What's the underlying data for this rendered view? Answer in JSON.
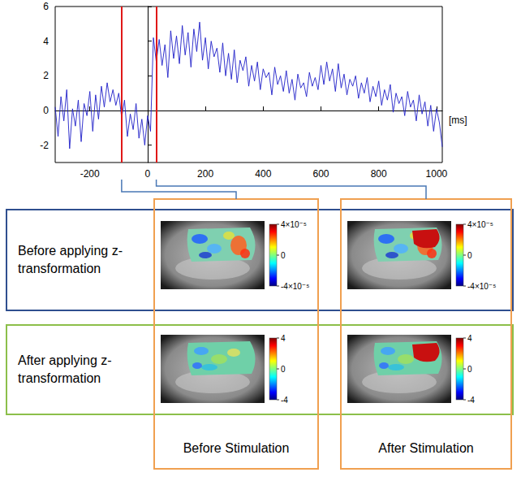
{
  "chart_data": {
    "type": "line",
    "color": "#1f1fc8",
    "x": [
      -320,
      -310,
      -300,
      -290,
      -280,
      -270,
      -260,
      -250,
      -240,
      -230,
      -220,
      -210,
      -200,
      -190,
      -180,
      -170,
      -160,
      -150,
      -140,
      -130,
      -120,
      -110,
      -100,
      -90,
      -80,
      -70,
      -60,
      -50,
      -40,
      -30,
      -20,
      -10,
      0,
      10,
      20,
      30,
      40,
      50,
      60,
      70,
      80,
      90,
      100,
      110,
      120,
      130,
      140,
      150,
      160,
      170,
      180,
      190,
      200,
      210,
      220,
      230,
      240,
      250,
      260,
      270,
      280,
      290,
      300,
      310,
      320,
      330,
      340,
      350,
      360,
      370,
      380,
      390,
      400,
      410,
      420,
      430,
      440,
      450,
      460,
      470,
      480,
      490,
      500,
      510,
      520,
      530,
      540,
      550,
      560,
      570,
      580,
      590,
      600,
      610,
      620,
      630,
      640,
      650,
      660,
      670,
      680,
      690,
      700,
      710,
      720,
      730,
      740,
      750,
      760,
      770,
      780,
      790,
      800,
      810,
      820,
      830,
      840,
      850,
      860,
      870,
      880,
      890,
      900,
      910,
      920,
      930,
      940,
      950,
      960,
      970,
      980,
      990,
      1000,
      1010,
      1020
    ],
    "values": [
      0.2,
      -1.5,
      0.8,
      -0.6,
      1.2,
      -2.2,
      0.1,
      -0.9,
      0.6,
      -1.8,
      0.4,
      -0.3,
      1.1,
      -1.2,
      0.9,
      -0.5,
      1.4,
      0.2,
      1.6,
      0.5,
      1.2,
      0.3,
      1.0,
      -0.4,
      0.6,
      -1.5,
      -0.2,
      -1.1,
      0.4,
      -1.6,
      -0.5,
      -2.0,
      -0.3,
      -1.2,
      4.2,
      2.8,
      4.1,
      2.6,
      3.8,
      1.9,
      4.6,
      3.0,
      4.3,
      2.7,
      4.9,
      3.2,
      4.5,
      2.5,
      4.7,
      3.4,
      5.1,
      2.9,
      4.2,
      2.4,
      4.0,
      3.1,
      3.6,
      2.2,
      3.9,
      2.0,
      3.3,
      1.8,
      3.5,
      1.6,
      2.9,
      2.3,
      3.1,
      1.4,
      2.6,
      1.7,
      2.8,
      1.2,
      2.4,
      1.9,
      2.2,
      0.9,
      2.5,
      1.5,
      2.0,
      1.1,
      2.3,
      1.0,
      1.8,
      0.6,
      2.1,
      1.3,
      1.6,
      0.8,
      2.2,
      1.4,
      1.9,
      1.2,
      2.6,
      1.5,
      2.8,
      1.7,
      2.4,
      1.1,
      2.7,
      1.3,
      2.1,
      0.9,
      1.8,
      1.4,
      2.0,
      0.7,
      1.6,
      1.0,
      1.9,
      0.5,
      1.4,
      0.8,
      1.7,
      0.3,
      1.2,
      0.6,
      1.5,
      -0.1,
      1.0,
      0.4,
      0.8,
      -0.3,
      1.1,
      0.2,
      0.6,
      -0.6,
      0.9,
      -0.2,
      0.5,
      -0.9,
      0.3,
      -1.2,
      0.1,
      -0.7,
      -2.1
    ],
    "xlim": [
      -320,
      1020
    ],
    "xticks": [
      -200,
      0,
      200,
      400,
      600,
      800,
      1000
    ],
    "ylim": [
      -3,
      6
    ],
    "yticks": [
      -2,
      0,
      2,
      4,
      6
    ],
    "x_label": "[ms]",
    "grid": false,
    "annotations": [
      {
        "type": "vline",
        "x": -90,
        "color": "#e01818"
      },
      {
        "type": "vline",
        "x": 30,
        "color": "#e01818"
      }
    ]
  },
  "diagram": {
    "columns": [
      "Before Stimulation",
      "After Stimulation"
    ],
    "rows": [
      {
        "label": "Before applying z-transformation",
        "colorbar": {
          "range": [
            -4e-05,
            4e-05
          ],
          "ticks": [
            {
              "value": 4e-05,
              "label": "4×10⁻⁵"
            },
            0,
            {
              "value": -4e-05,
              "label": "-4×10⁻⁵"
            }
          ]
        }
      },
      {
        "label": "After applying z-transformation",
        "colorbar": {
          "range": [
            -4,
            4
          ],
          "ticks": [
            4,
            0,
            -4
          ]
        }
      }
    ]
  }
}
